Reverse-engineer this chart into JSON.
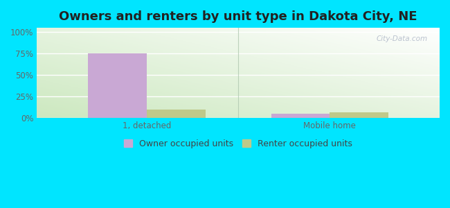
{
  "title": "Owners and renters by unit type in Dakota City, NE",
  "categories": [
    "1, detached",
    "Mobile home"
  ],
  "owner_values": [
    75.0,
    5.0
  ],
  "renter_values": [
    10.0,
    6.5
  ],
  "owner_color": "#c9a8d4",
  "renter_color": "#bfc98a",
  "outer_bg": "#00e5ff",
  "yticks": [
    0,
    25,
    50,
    75,
    100
  ],
  "ytick_labels": [
    "0%",
    "25%",
    "50%",
    "75%",
    "100%"
  ],
  "ylim": [
    0,
    105
  ],
  "bar_width": 0.32,
  "legend_owner": "Owner occupied units",
  "legend_renter": "Renter occupied units",
  "watermark": "City-Data.com",
  "title_fontsize": 13,
  "axis_fontsize": 8.5,
  "legend_fontsize": 9,
  "grid_color": "#ffffff",
  "separator_color": "#b0c8b0",
  "tick_label_color": "#666666"
}
